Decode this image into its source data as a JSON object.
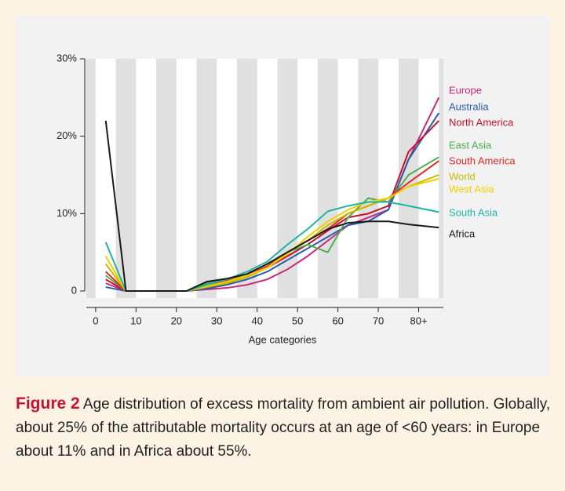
{
  "chart_data": {
    "type": "line",
    "x_label": "Age categories",
    "x": [
      2.5,
      7.5,
      12.5,
      17.5,
      22.5,
      27.5,
      32.5,
      37.5,
      42.5,
      47.5,
      52.5,
      57.5,
      62.5,
      67.5,
      72.5,
      77.5,
      85
    ],
    "xlim": [
      -2.7,
      86.7
    ],
    "xticks": [
      0,
      10,
      20,
      30,
      40,
      50,
      60,
      70,
      {
        "value": 80,
        "label": "80+"
      }
    ],
    "ylim": [
      0,
      30
    ],
    "yticks": [
      0,
      {
        "value": 10,
        "label": "10%"
      },
      {
        "value": 20,
        "label": "20%"
      },
      {
        "value": 30,
        "label": "30%"
      }
    ],
    "series": [
      {
        "name": "Europe",
        "color": "#c8287a",
        "values": [
          1,
          0,
          0,
          0,
          0,
          0.2,
          0.4,
          0.8,
          1.5,
          2.8,
          4.5,
          6.5,
          8.5,
          9.5,
          10.5,
          17,
          25
        ]
      },
      {
        "name": "Australia",
        "color": "#2a5caa",
        "values": [
          0.5,
          0,
          0,
          0,
          0,
          0.3,
          0.8,
          1.5,
          2.5,
          4,
          5.5,
          7,
          8.5,
          9,
          10.5,
          17,
          23
        ]
      },
      {
        "name": "North America",
        "color": "#c8102e",
        "values": [
          1.5,
          0,
          0,
          0,
          0,
          0.5,
          1,
          1.8,
          3,
          4.5,
          6,
          7.8,
          9.5,
          10,
          11,
          18,
          22
        ]
      },
      {
        "name": "East Asia",
        "color": "#4caf50",
        "values": [
          2,
          0,
          0,
          0,
          0,
          1,
          1.5,
          2.2,
          3.5,
          5,
          6,
          5,
          9.5,
          12,
          11.5,
          15,
          17.3
        ]
      },
      {
        "name": "South America",
        "color": "#e02828",
        "values": [
          2.5,
          0,
          0,
          0,
          0,
          0.8,
          1.3,
          2,
          3.2,
          5,
          6.5,
          8,
          10,
          11,
          12,
          14,
          16.8
        ]
      },
      {
        "name": "World",
        "color": "#c9b800",
        "values": [
          3.5,
          0,
          0,
          0,
          0,
          0.5,
          1,
          1.8,
          3,
          5,
          6.5,
          8.5,
          10,
          11,
          12,
          13.5,
          15
        ]
      },
      {
        "name": "West Asia",
        "color": "#f0d000",
        "values": [
          4.5,
          0,
          0,
          0,
          0,
          0.6,
          1.2,
          2,
          3,
          4.8,
          7,
          9,
          10.5,
          11.5,
          12,
          13.5,
          14.5
        ]
      },
      {
        "name": "South Asia",
        "color": "#1fb5a3",
        "values": [
          6.3,
          0,
          0,
          0,
          0,
          0.8,
          1.5,
          2.5,
          3.8,
          6,
          8,
          10.3,
          11,
          11.5,
          11.5,
          11,
          10.2
        ]
      },
      {
        "name": "Africa",
        "color": "#1a1a1a",
        "values": [
          22,
          0,
          0,
          0,
          0,
          1.2,
          1.6,
          2.2,
          3.5,
          5,
          6.5,
          8,
          8.8,
          9,
          9,
          8.6,
          8.2
        ]
      }
    ]
  },
  "caption": {
    "label": "Figure 2",
    "text": "Age distribution of excess mortality from ambient air pollution. Globally, about 25% of the attributable mortality occurs at an age of <60 years: in Europe about 11% and in Africa about 55%."
  }
}
